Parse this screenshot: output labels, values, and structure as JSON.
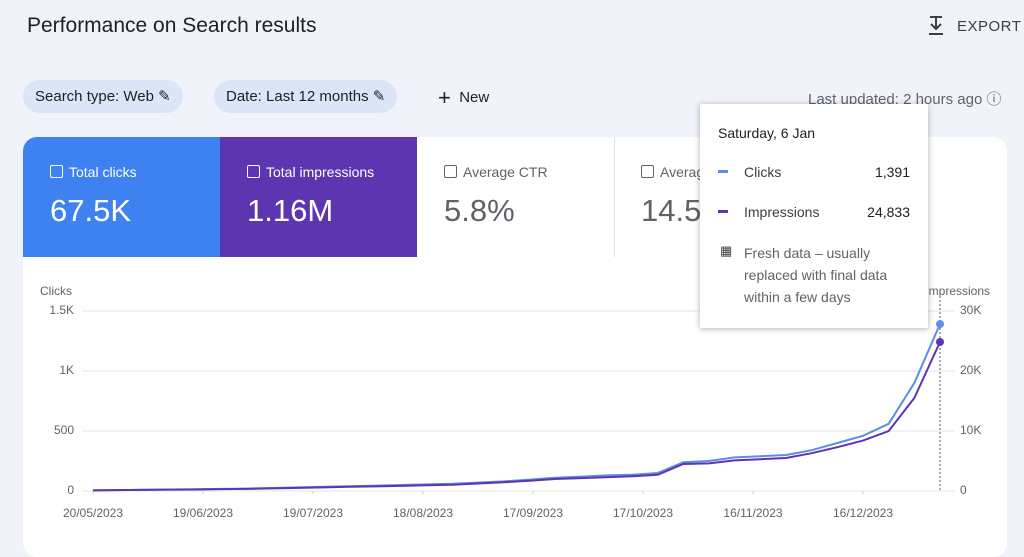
{
  "header": {
    "title": "Performance on Search results",
    "export": "EXPORT"
  },
  "filters": [
    "Search type: Web",
    "Date: Last 12 months"
  ],
  "new_button": "New",
  "last_updated": "Last updated: 2 hours ago",
  "cards": [
    {
      "label": "Total clicks",
      "value": "67.5K"
    },
    {
      "label": "Total impressions",
      "value": "1.16M"
    },
    {
      "label": "Average CTR",
      "value": "5.8%"
    },
    {
      "label": "Average position",
      "value": "14.5"
    }
  ],
  "tooltip": {
    "date": "Saturday, 6 Jan",
    "rows": [
      {
        "name": "Clicks",
        "value": "1,391"
      },
      {
        "name": "Impressions",
        "value": "24,833"
      }
    ],
    "note": "Fresh data – usually replaced with final data within a few days"
  },
  "chart_data": {
    "type": "line",
    "y_label": "Clicks",
    "y2_label": "Impressions",
    "x": [
      "20/05/2023",
      "27/05/2023",
      "03/06/2023",
      "10/06/2023",
      "17/06/2023",
      "24/06/2023",
      "01/07/2023",
      "08/07/2023",
      "15/07/2023",
      "22/07/2023",
      "29/07/2023",
      "05/08/2023",
      "12/08/2023",
      "19/08/2023",
      "26/08/2023",
      "02/09/2023",
      "09/09/2023",
      "16/09/2023",
      "23/09/2023",
      "30/09/2023",
      "07/10/2023",
      "14/10/2023",
      "21/10/2023",
      "28/10/2023",
      "04/11/2023",
      "11/11/2023",
      "18/11/2023",
      "25/11/2023",
      "02/12/2023",
      "09/12/2023",
      "16/12/2023",
      "23/12/2023",
      "30/12/2023",
      "06/01/2024"
    ],
    "xticks": [
      "20/05/2023",
      "19/06/2023",
      "19/07/2023",
      "18/08/2023",
      "17/09/2023",
      "17/10/2023",
      "16/11/2023",
      "16/12/2023"
    ],
    "ylim": [
      0,
      1500
    ],
    "yticks": [
      0,
      500,
      {
        "value": 1000,
        "label": "1K"
      },
      {
        "value": 1500,
        "label": "1.5K"
      }
    ],
    "y2lim": [
      0,
      30000
    ],
    "y2ticks": [
      0,
      {
        "value": 10000,
        "label": "10K"
      },
      {
        "value": 20000,
        "label": "20K"
      },
      {
        "value": 30000,
        "label": "30K"
      }
    ],
    "grid": true,
    "series": [
      {
        "name": "Clicks",
        "color": "#5b8ee6",
        "values": [
          5,
          8,
          10,
          12,
          15,
          18,
          20,
          25,
          30,
          35,
          40,
          45,
          50,
          55,
          60,
          70,
          80,
          95,
          110,
          120,
          130,
          135,
          150,
          240,
          250,
          280,
          290,
          300,
          340,
          400,
          460,
          560,
          900,
          1391
        ]
      },
      {
        "name": "Impressions",
        "color": "#5e35b1",
        "axis": "y2",
        "values": [
          100,
          150,
          180,
          220,
          260,
          320,
          360,
          440,
          520,
          600,
          700,
          780,
          860,
          950,
          1050,
          1250,
          1450,
          1700,
          2000,
          2150,
          2300,
          2450,
          2700,
          4500,
          4600,
          5100,
          5300,
          5500,
          6300,
          7300,
          8400,
          10000,
          15500,
          24833
        ]
      }
    ]
  }
}
